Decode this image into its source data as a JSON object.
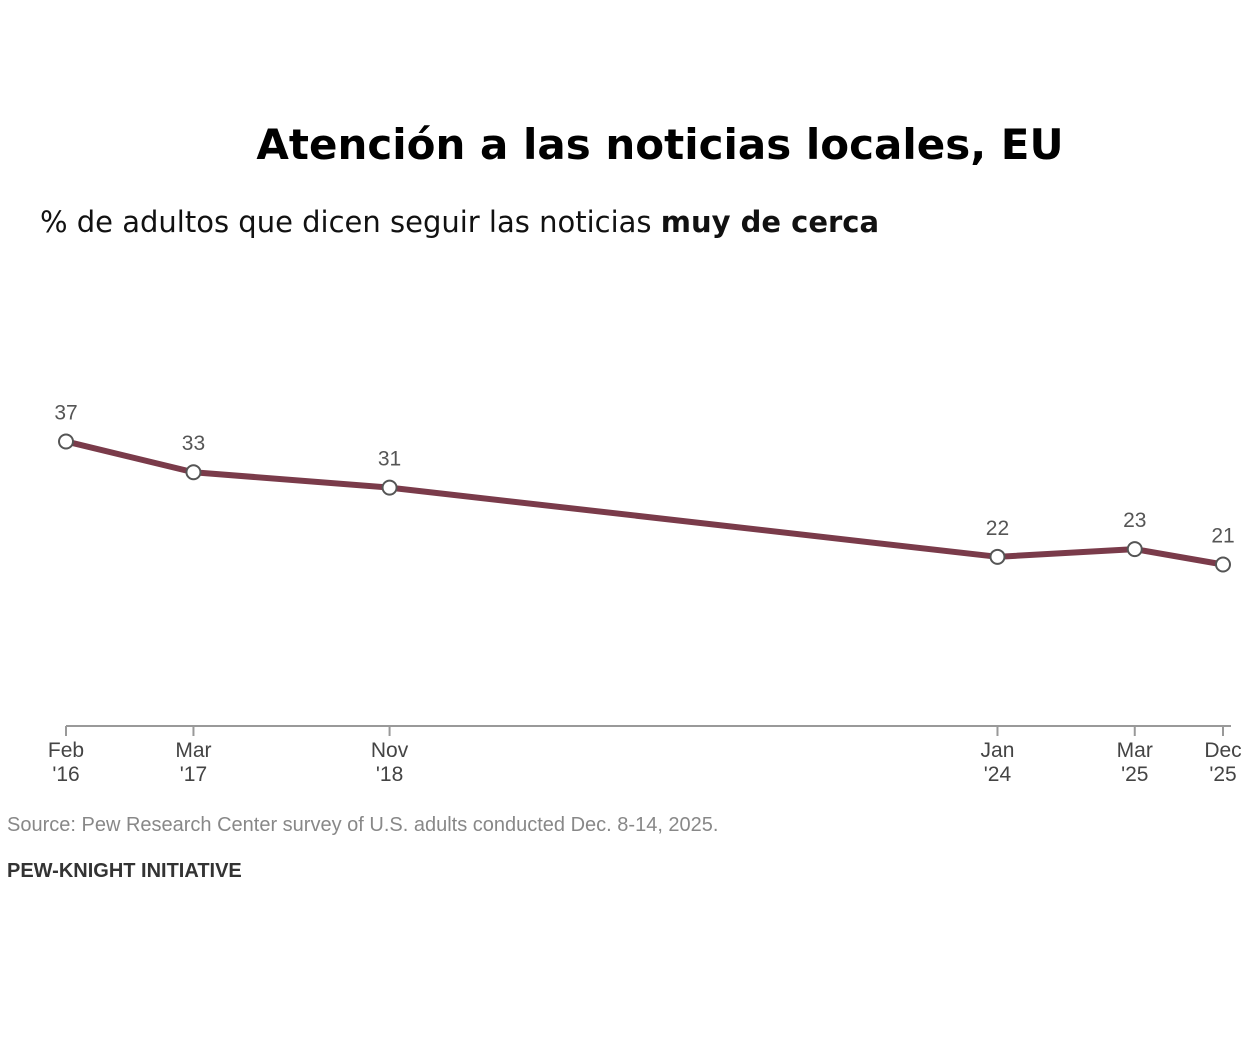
{
  "chart_data": {
    "type": "line",
    "title": "Atención a las noticias locales, EU",
    "subtitle_plain": "% de adultos que dicen seguir las noticias ",
    "subtitle_bold": "muy de cerca",
    "x": [
      "2016-02",
      "2017-03",
      "2018-11",
      "2024-01",
      "2025-03",
      "2025-12"
    ],
    "tick_labels": [
      [
        "Feb",
        "'16"
      ],
      [
        "Mar",
        "'17"
      ],
      [
        "Nov",
        "'18"
      ],
      [
        "Jan",
        "'24"
      ],
      [
        "Mar",
        "'25"
      ],
      [
        "Dec",
        "'25"
      ]
    ],
    "series": [
      {
        "values": [
          37,
          33,
          31,
          22,
          23,
          21
        ],
        "color": "#7a3b4a"
      }
    ],
    "ylim": [
      0,
      45
    ],
    "grid": false,
    "legend": "none",
    "source": "Source: Pew Research Center survey of U.S. adults conducted Dec. 8-14, 2025.",
    "brand": "PEW-KNIGHT INITIATIVE"
  }
}
